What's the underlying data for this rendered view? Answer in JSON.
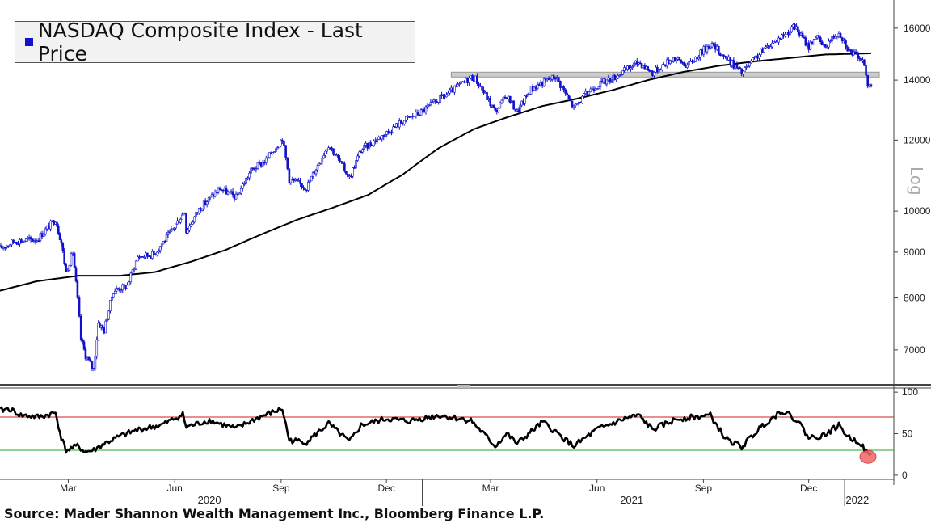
{
  "chart_data": [
    {
      "type": "line",
      "title": "",
      "legend": {
        "entries": [
          "NASDAQ Composite Index - Last Price"
        ],
        "placement": "top-left",
        "color": "#1111cc"
      },
      "y_scale": "log",
      "y_scale_label": "Log",
      "ylim": [
        6400,
        17200
      ],
      "y_ticks": [
        7000,
        8000,
        9000,
        10000,
        12000,
        14000,
        16000
      ],
      "x_range": [
        "2020-01-02",
        "2022-01-24"
      ],
      "x_ticks": [
        {
          "date": "2020-03-01",
          "label": "Mar"
        },
        {
          "date": "2020-06-01",
          "label": "Jun"
        },
        {
          "date": "2020-09-01",
          "label": "Sep"
        },
        {
          "date": "2020-12-01",
          "label": "Dec"
        },
        {
          "date": "2021-03-01",
          "label": "Mar"
        },
        {
          "date": "2021-06-01",
          "label": "Jun"
        },
        {
          "date": "2021-09-01",
          "label": "Sep"
        },
        {
          "date": "2021-12-01",
          "label": "Dec"
        }
      ],
      "year_labels": [
        {
          "date": "2020-07-01",
          "label": "2020"
        },
        {
          "date": "2021-07-01",
          "label": "2021"
        },
        {
          "date": "2022-01-12",
          "label": "2022"
        }
      ],
      "series": [
        {
          "role": "price",
          "color": "#1111cc",
          "points": [
            [
              "2020-01-02",
              9090
            ],
            [
              "2020-01-15",
              9260
            ],
            [
              "2020-02-03",
              9300
            ],
            [
              "2020-02-19",
              9800
            ],
            [
              "2020-02-24",
              9220
            ],
            [
              "2020-02-28",
              8550
            ],
            [
              "2020-03-05",
              9000
            ],
            [
              "2020-03-09",
              7950
            ],
            [
              "2020-03-12",
              7200
            ],
            [
              "2020-03-16",
              6900
            ],
            [
              "2020-03-23",
              6650
            ],
            [
              "2020-03-27",
              7500
            ],
            [
              "2020-04-01",
              7360
            ],
            [
              "2020-04-09",
              8150
            ],
            [
              "2020-04-21",
              8260
            ],
            [
              "2020-04-30",
              8890
            ],
            [
              "2020-05-14",
              8950
            ],
            [
              "2020-05-29",
              9490
            ],
            [
              "2020-06-10",
              10020
            ],
            [
              "2020-06-11",
              9490
            ],
            [
              "2020-06-22",
              10050
            ],
            [
              "2020-07-10",
              10600
            ],
            [
              "2020-07-24",
              10360
            ],
            [
              "2020-08-06",
              11100
            ],
            [
              "2020-08-19",
              11400
            ],
            [
              "2020-09-02",
              12060
            ],
            [
              "2020-09-08",
              10850
            ],
            [
              "2020-09-23",
              10630
            ],
            [
              "2020-10-12",
              11870
            ],
            [
              "2020-10-30",
              10900
            ],
            [
              "2020-11-09",
              11700
            ],
            [
              "2020-11-30",
              12200
            ],
            [
              "2020-12-15",
              12600
            ],
            [
              "2020-12-31",
              12900
            ],
            [
              "2021-01-26",
              13600
            ],
            [
              "2021-02-12",
              14100
            ],
            [
              "2021-02-16",
              14050
            ],
            [
              "2021-03-05",
              12900
            ],
            [
              "2021-03-15",
              13450
            ],
            [
              "2021-03-24",
              12900
            ],
            [
              "2021-04-05",
              13700
            ],
            [
              "2021-04-26",
              14140
            ],
            [
              "2021-05-12",
              13030
            ],
            [
              "2021-05-28",
              13740
            ],
            [
              "2021-06-15",
              14080
            ],
            [
              "2021-07-07",
              14670
            ],
            [
              "2021-07-19",
              14270
            ],
            [
              "2021-08-06",
              14830
            ],
            [
              "2021-08-18",
              14530
            ],
            [
              "2021-09-07",
              15370
            ],
            [
              "2021-09-30",
              14450
            ],
            [
              "2021-10-04",
              14250
            ],
            [
              "2021-10-22",
              15100
            ],
            [
              "2021-11-19",
              16060
            ],
            [
              "2021-12-01",
              15250
            ],
            [
              "2021-12-07",
              15690
            ],
            [
              "2021-12-14",
              15240
            ],
            [
              "2021-12-27",
              15870
            ],
            [
              "2022-01-05",
              15100
            ],
            [
              "2022-01-10",
              14940
            ],
            [
              "2022-01-14",
              14890
            ],
            [
              "2022-01-18",
              14500
            ],
            [
              "2022-01-21",
              13770
            ],
            [
              "2022-01-24",
              13860
            ]
          ]
        },
        {
          "role": "moving-average",
          "color": "#000000",
          "points": [
            [
              "2020-01-02",
              8150
            ],
            [
              "2020-02-03",
              8350
            ],
            [
              "2020-03-10",
              8470
            ],
            [
              "2020-04-15",
              8470
            ],
            [
              "2020-05-15",
              8550
            ],
            [
              "2020-06-15",
              8780
            ],
            [
              "2020-07-15",
              9050
            ],
            [
              "2020-08-15",
              9420
            ],
            [
              "2020-09-15",
              9780
            ],
            [
              "2020-10-15",
              10080
            ],
            [
              "2020-11-15",
              10420
            ],
            [
              "2020-12-15",
              10980
            ],
            [
              "2021-01-15",
              11750
            ],
            [
              "2021-02-15",
              12350
            ],
            [
              "2021-03-15",
              12720
            ],
            [
              "2021-04-15",
              13100
            ],
            [
              "2021-05-15",
              13350
            ],
            [
              "2021-06-15",
              13650
            ],
            [
              "2021-07-15",
              14000
            ],
            [
              "2021-08-15",
              14300
            ],
            [
              "2021-09-15",
              14530
            ],
            [
              "2021-10-15",
              14690
            ],
            [
              "2021-11-15",
              14820
            ],
            [
              "2021-12-15",
              14950
            ],
            [
              "2022-01-24",
              15000
            ]
          ]
        }
      ],
      "annotations": [
        {
          "type": "horizontal-band",
          "value": 14200,
          "x_from": "2021-01-26",
          "x_to": "2022-01-31",
          "color": "#cccccc"
        }
      ]
    },
    {
      "type": "line",
      "title": "",
      "ylim": [
        -5,
        105
      ],
      "y_ticks": [
        0,
        50,
        100
      ],
      "reference_lines": [
        {
          "value": 70,
          "color": "#cc2222"
        },
        {
          "value": 30,
          "color": "#22aa22"
        }
      ],
      "series": [
        {
          "color": "#000000",
          "points": [
            [
              "2020-01-02",
              78
            ],
            [
              "2020-01-10",
              80
            ],
            [
              "2020-01-20",
              72
            ],
            [
              "2020-02-05",
              70
            ],
            [
              "2020-02-19",
              75
            ],
            [
              "2020-02-24",
              45
            ],
            [
              "2020-02-28",
              30
            ],
            [
              "2020-03-09",
              35
            ],
            [
              "2020-03-16",
              28
            ],
            [
              "2020-03-23",
              30
            ],
            [
              "2020-04-01",
              38
            ],
            [
              "2020-04-15",
              47
            ],
            [
              "2020-05-01",
              55
            ],
            [
              "2020-05-20",
              60
            ],
            [
              "2020-06-08",
              73
            ],
            [
              "2020-06-11",
              58
            ],
            [
              "2020-07-01",
              66
            ],
            [
              "2020-07-24",
              56
            ],
            [
              "2020-08-10",
              68
            ],
            [
              "2020-09-02",
              80
            ],
            [
              "2020-09-08",
              42
            ],
            [
              "2020-09-23",
              40
            ],
            [
              "2020-10-12",
              62
            ],
            [
              "2020-10-30",
              40
            ],
            [
              "2020-11-09",
              60
            ],
            [
              "2020-12-01",
              68
            ],
            [
              "2020-12-20",
              65
            ],
            [
              "2021-01-15",
              72
            ],
            [
              "2021-02-12",
              66
            ],
            [
              "2021-03-05",
              35
            ],
            [
              "2021-03-15",
              50
            ],
            [
              "2021-03-24",
              38
            ],
            [
              "2021-04-15",
              64
            ],
            [
              "2021-05-12",
              35
            ],
            [
              "2021-06-01",
              55
            ],
            [
              "2021-06-25",
              68
            ],
            [
              "2021-07-07",
              72
            ],
            [
              "2021-07-19",
              55
            ],
            [
              "2021-08-10",
              68
            ],
            [
              "2021-09-07",
              72
            ],
            [
              "2021-09-20",
              44
            ],
            [
              "2021-10-04",
              34
            ],
            [
              "2021-10-22",
              60
            ],
            [
              "2021-11-08",
              78
            ],
            [
              "2021-11-22",
              65
            ],
            [
              "2021-12-01",
              45
            ],
            [
              "2021-12-14",
              48
            ],
            [
              "2021-12-27",
              60
            ],
            [
              "2022-01-05",
              45
            ],
            [
              "2022-01-14",
              40
            ],
            [
              "2022-01-21",
              25
            ],
            [
              "2022-01-24",
              24
            ]
          ]
        }
      ],
      "annotations": [
        {
          "type": "circle-marker",
          "date": "2022-01-24",
          "value": 24,
          "color": "#ee6666"
        }
      ]
    }
  ],
  "source_text": "Source: Mader Shannon Wealth Management Inc., Bloomberg Finance L.P."
}
